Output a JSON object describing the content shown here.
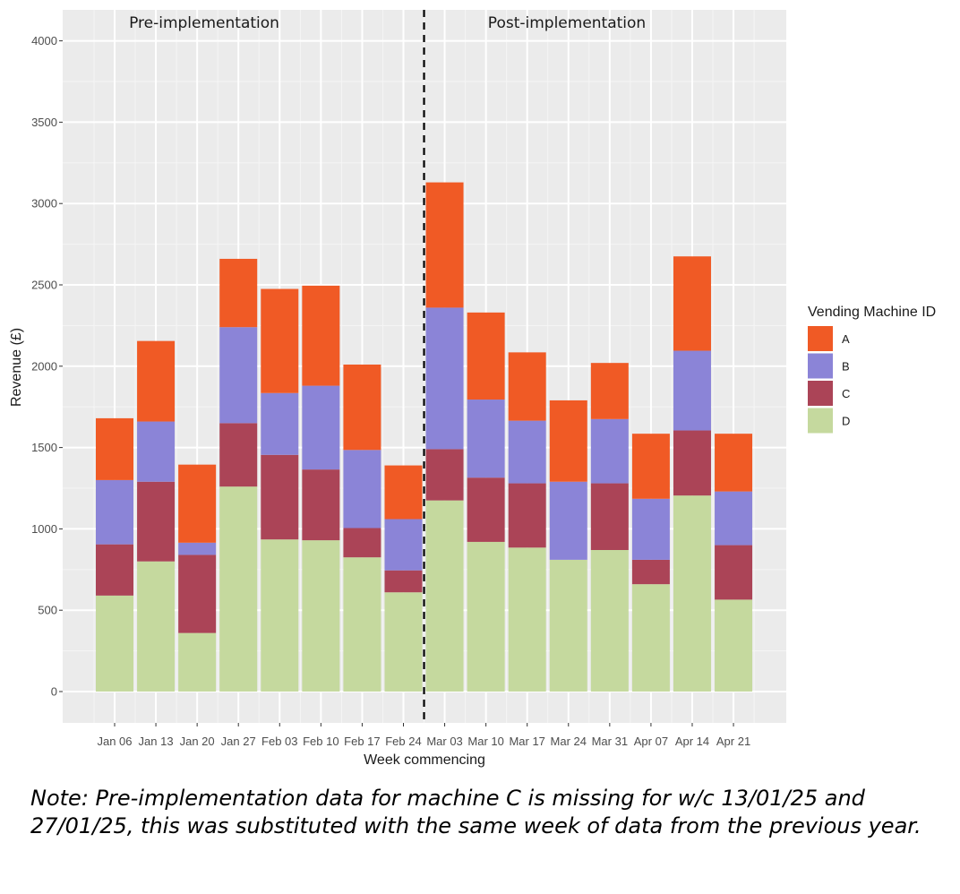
{
  "chart_data": {
    "type": "bar",
    "stacked": true,
    "xlabel": "Week commencing",
    "ylabel": "Revenue (£)",
    "ylim": [
      -150,
      4150
    ],
    "yticks": [
      0,
      500,
      1000,
      1500,
      2000,
      2500,
      3000,
      3500,
      4000
    ],
    "grid": true,
    "legend": {
      "title": "Vending Machine ID",
      "placement": "right"
    },
    "categories": [
      "Jan 06",
      "Jan 13",
      "Jan 20",
      "Jan 27",
      "Feb 03",
      "Feb 10",
      "Feb 17",
      "Feb 24",
      "Mar 03",
      "Mar 10",
      "Mar 17",
      "Mar 24",
      "Mar 31",
      "Apr 07",
      "Apr 14",
      "Apr 21"
    ],
    "series": [
      {
        "name": "D",
        "color": "#c5d99e",
        "values": [
          590,
          800,
          360,
          1260,
          935,
          930,
          825,
          610,
          1175,
          920,
          885,
          810,
          870,
          660,
          1205,
          565
        ]
      },
      {
        "name": "C",
        "color": "#ab4457",
        "values": [
          315,
          490,
          480,
          390,
          520,
          435,
          180,
          135,
          315,
          395,
          395,
          0,
          410,
          150,
          400,
          335
        ]
      },
      {
        "name": "B",
        "color": "#8b84d7",
        "values": [
          395,
          370,
          75,
          590,
          380,
          515,
          480,
          315,
          870,
          480,
          385,
          480,
          395,
          375,
          490,
          330
        ]
      },
      {
        "name": "A",
        "color": "#f05a25",
        "values": [
          380,
          495,
          480,
          420,
          640,
          615,
          525,
          330,
          770,
          535,
          420,
          500,
          345,
          400,
          580,
          355
        ]
      }
    ],
    "stack_order": [
      "D",
      "C",
      "B",
      "A"
    ],
    "legend_order": [
      "A",
      "B",
      "C",
      "D"
    ],
    "annotations": [
      {
        "type": "vline",
        "between": [
          "Feb 24",
          "Mar 03"
        ],
        "style": "dashed"
      },
      {
        "type": "label",
        "text": "Pre-implementation",
        "side": "left"
      },
      {
        "type": "label",
        "text": "Post-implementation",
        "side": "right"
      }
    ]
  },
  "note": "Note: Pre-implementation data for machine C is missing for w/c 13/01/25 and 27/01/25, this was substituted with the same week of data from the previous year."
}
